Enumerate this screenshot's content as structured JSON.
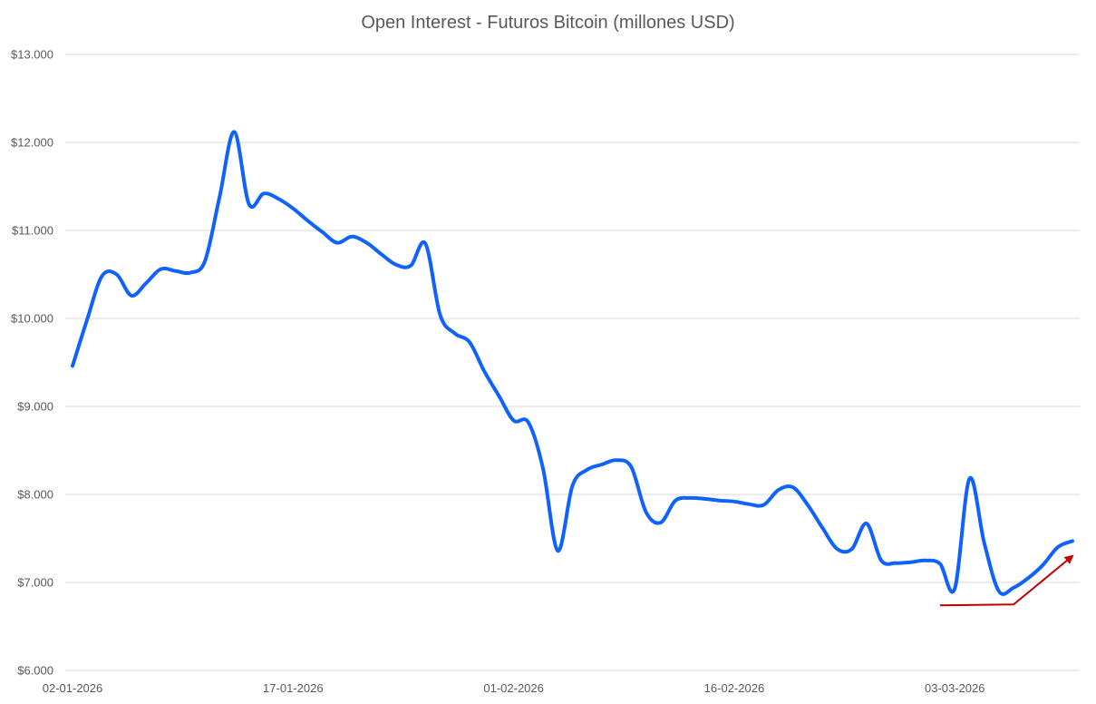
{
  "chart_data": {
    "type": "line",
    "title": "Open Interest - Futuros Bitcoin  (millones USD)",
    "xlabel": "",
    "ylabel": "",
    "ylim": [
      6000,
      13000
    ],
    "y_ticks": [
      6000,
      7000,
      8000,
      9000,
      10000,
      11000,
      12000,
      13000
    ],
    "y_tick_labels": [
      "$6.000",
      "$7.000",
      "$8.000",
      "$9.000",
      "$10.000",
      "$11.000",
      "$12.000",
      "$13.000"
    ],
    "x_range": [
      "2026-01-02",
      "2026-03-11"
    ],
    "x_ticks": [
      "2026-01-02",
      "2026-01-17",
      "2026-02-01",
      "2026-02-16",
      "2026-03-03"
    ],
    "x_tick_labels": [
      "02-01-2026",
      "17-01-2026",
      "01-02-2026",
      "16-02-2026",
      "03-03-2026"
    ],
    "grid": true,
    "series": [
      {
        "color": "#0f62fe",
        "points": [
          [
            "2026-01-02",
            9460
          ],
          [
            "2026-01-03",
            9990
          ],
          [
            "2026-01-04",
            10480
          ],
          [
            "2026-01-05",
            10500
          ],
          [
            "2026-01-06",
            10260
          ],
          [
            "2026-01-07",
            10400
          ],
          [
            "2026-01-08",
            10560
          ],
          [
            "2026-01-09",
            10540
          ],
          [
            "2026-01-10",
            10520
          ],
          [
            "2026-01-11",
            10650
          ],
          [
            "2026-01-12",
            11380
          ],
          [
            "2026-01-13",
            12120
          ],
          [
            "2026-01-14",
            11300
          ],
          [
            "2026-01-15",
            11420
          ],
          [
            "2026-01-16",
            11360
          ],
          [
            "2026-01-17",
            11250
          ],
          [
            "2026-01-18",
            11110
          ],
          [
            "2026-01-19",
            10980
          ],
          [
            "2026-01-20",
            10860
          ],
          [
            "2026-01-21",
            10930
          ],
          [
            "2026-01-22",
            10860
          ],
          [
            "2026-01-23",
            10730
          ],
          [
            "2026-01-24",
            10610
          ],
          [
            "2026-01-25",
            10600
          ],
          [
            "2026-01-26",
            10850
          ],
          [
            "2026-01-27",
            10040
          ],
          [
            "2026-01-28",
            9830
          ],
          [
            "2026-01-29",
            9730
          ],
          [
            "2026-01-30",
            9400
          ],
          [
            "2026-01-31",
            9120
          ],
          [
            "2026-02-01",
            8840
          ],
          [
            "2026-02-02",
            8820
          ],
          [
            "2026-02-03",
            8290
          ],
          [
            "2026-02-04",
            7360
          ],
          [
            "2026-02-05",
            8100
          ],
          [
            "2026-02-06",
            8280
          ],
          [
            "2026-02-07",
            8340
          ],
          [
            "2026-02-08",
            8390
          ],
          [
            "2026-02-09",
            8310
          ],
          [
            "2026-02-10",
            7800
          ],
          [
            "2026-02-11",
            7680
          ],
          [
            "2026-02-12",
            7930
          ],
          [
            "2026-02-13",
            7960
          ],
          [
            "2026-02-14",
            7950
          ],
          [
            "2026-02-15",
            7930
          ],
          [
            "2026-02-16",
            7920
          ],
          [
            "2026-02-17",
            7890
          ],
          [
            "2026-02-18",
            7880
          ],
          [
            "2026-02-19",
            8050
          ],
          [
            "2026-02-20",
            8080
          ],
          [
            "2026-02-21",
            7880
          ],
          [
            "2026-02-22",
            7620
          ],
          [
            "2026-02-23",
            7380
          ],
          [
            "2026-02-24",
            7380
          ],
          [
            "2026-02-25",
            7670
          ],
          [
            "2026-02-26",
            7250
          ],
          [
            "2026-02-27",
            7220
          ],
          [
            "2026-02-28",
            7230
          ],
          [
            "2026-03-01",
            7250
          ],
          [
            "2026-03-02",
            7210
          ],
          [
            "2026-03-03",
            6930
          ],
          [
            "2026-03-04",
            8180
          ],
          [
            "2026-03-05",
            7450
          ],
          [
            "2026-03-06",
            6900
          ],
          [
            "2026-03-07",
            6940
          ],
          [
            "2026-03-08",
            7050
          ],
          [
            "2026-03-09",
            7200
          ],
          [
            "2026-03-10",
            7400
          ],
          [
            "2026-03-11",
            7470
          ]
        ]
      }
    ],
    "annotation": {
      "type": "arrow",
      "color": "#c00000",
      "points": [
        [
          "2026-03-02",
          6740
        ],
        [
          "2026-03-07",
          6750
        ],
        [
          "2026-03-11",
          7300
        ]
      ]
    }
  }
}
